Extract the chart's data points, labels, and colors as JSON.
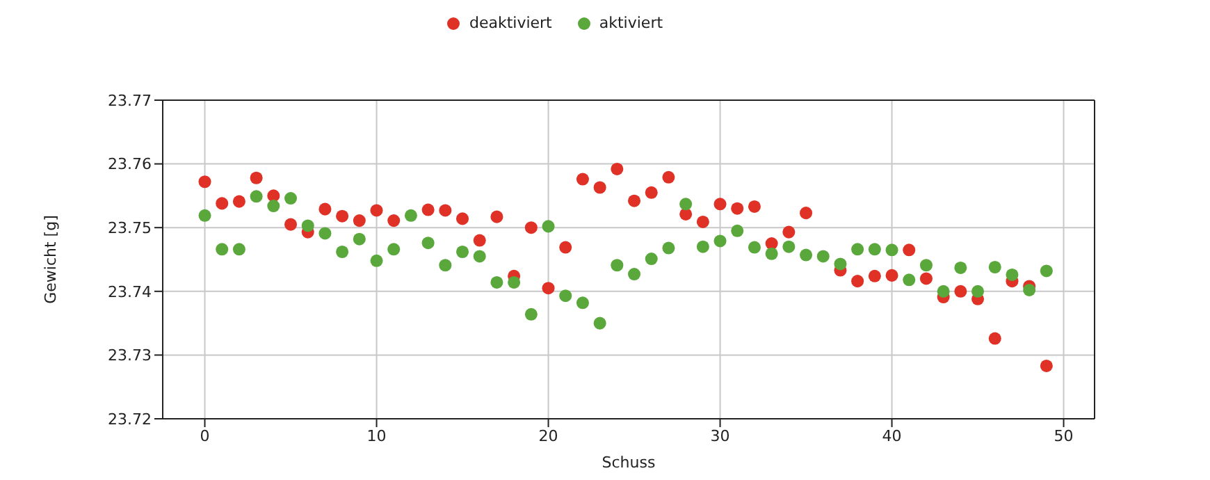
{
  "chart_data": {
    "type": "scatter",
    "xlabel": "Schuss",
    "ylabel": "Gewicht [g]",
    "x": [
      0,
      1,
      2,
      3,
      4,
      5,
      6,
      7,
      8,
      9,
      10,
      11,
      12,
      13,
      14,
      15,
      16,
      17,
      18,
      19,
      20,
      21,
      22,
      23,
      24,
      25,
      26,
      27,
      28,
      29,
      30,
      31,
      32,
      33,
      34,
      35,
      36,
      37,
      38,
      39,
      40,
      41,
      42,
      43,
      44,
      45,
      46,
      47,
      48,
      49
    ],
    "xlim": [
      -2.45,
      51.8
    ],
    "xticks": [
      0,
      10,
      20,
      30,
      40,
      50
    ],
    "ylim": [
      23.72,
      23.77
    ],
    "yticks": [
      23.72,
      23.73,
      23.74,
      23.75,
      23.76,
      23.77
    ],
    "grid": true,
    "legend": "top",
    "marker": "circle",
    "series": [
      {
        "name": "deaktiviert",
        "color": "#e03127",
        "values": [
          23.7572,
          23.7538,
          23.7541,
          23.7578,
          23.755,
          23.7505,
          23.7493,
          23.7529,
          23.7518,
          23.7511,
          23.7527,
          23.7511,
          null,
          23.7528,
          23.7527,
          23.7514,
          23.748,
          23.7517,
          23.7424,
          23.75,
          23.7405,
          23.7469,
          23.7576,
          23.7563,
          23.7592,
          23.7542,
          23.7555,
          23.7579,
          23.7521,
          23.7509,
          23.7537,
          23.753,
          23.7533,
          23.7475,
          23.7493,
          23.7523,
          null,
          23.7433,
          23.7416,
          23.7424,
          23.7425,
          23.7465,
          23.742,
          23.7391,
          23.74,
          23.7388,
          23.7326,
          23.7416,
          23.7408,
          23.7283
        ]
      },
      {
        "name": "aktiviert",
        "color": "#5aa83c",
        "values": [
          23.7519,
          23.7466,
          23.7466,
          23.7549,
          23.7534,
          23.7546,
          23.7503,
          23.7491,
          23.7462,
          23.7482,
          23.7448,
          23.7466,
          23.7519,
          23.7476,
          23.7441,
          23.7462,
          23.7455,
          23.7414,
          23.7414,
          23.7364,
          23.7502,
          23.7393,
          23.7382,
          23.735,
          23.7441,
          23.7427,
          23.7451,
          23.7468,
          23.7537,
          23.747,
          23.7479,
          23.7495,
          23.7469,
          23.7459,
          23.747,
          23.7457,
          23.7455,
          23.7443,
          23.7466,
          23.7466,
          23.7465,
          23.7418,
          23.7441,
          23.74,
          23.7437,
          23.74,
          23.7438,
          23.7426,
          23.7402,
          23.7432
        ]
      }
    ]
  }
}
